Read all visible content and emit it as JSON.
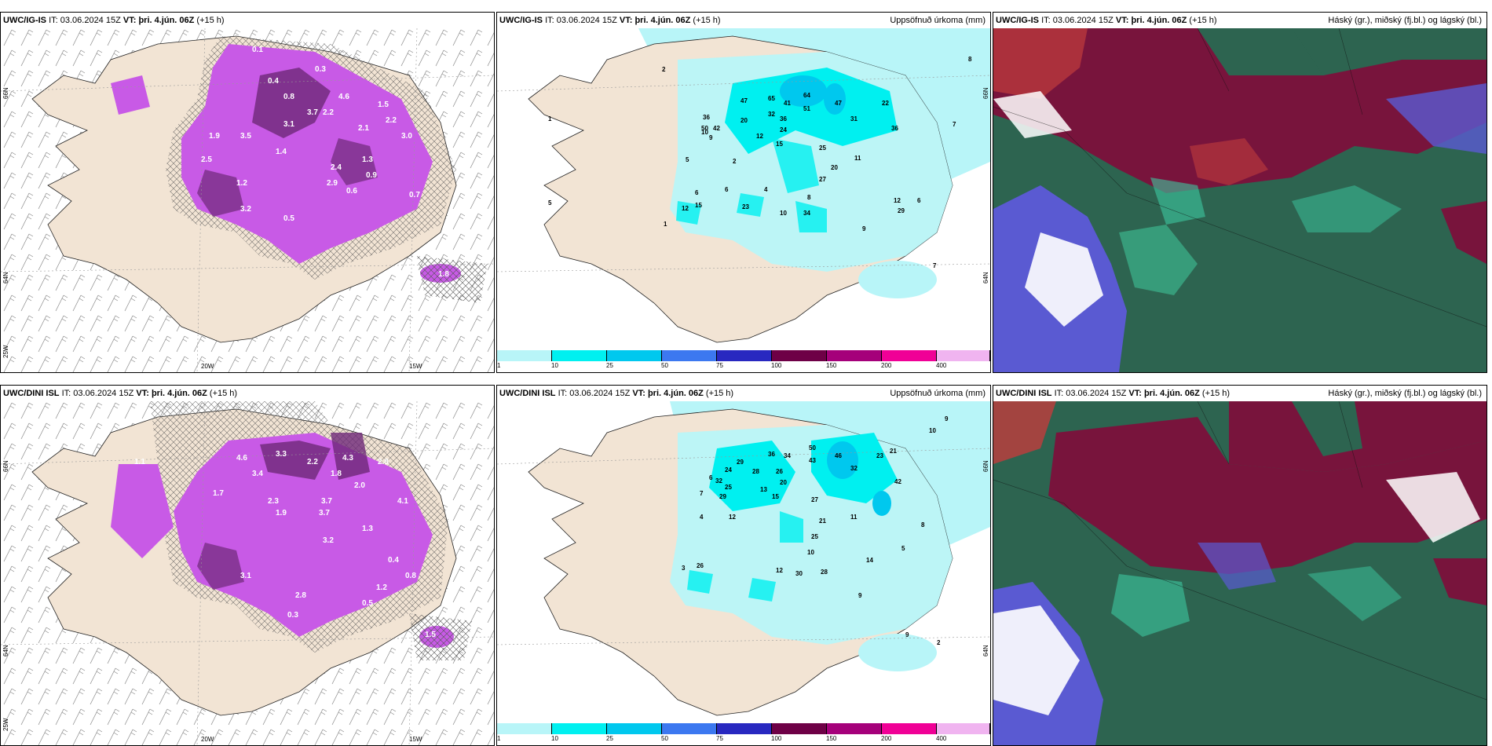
{
  "panels": [
    {
      "id": "top-left",
      "model": "UWC/IG-IS",
      "it_label": "IT:",
      "it_value": "03.06.2024 15Z",
      "vt_label": "VT:",
      "vt_value": "þri. 4.jún. 06Z",
      "lead": "(+15 h)",
      "right_title": "",
      "lon_labels": [
        "20W",
        "15W"
      ],
      "lat_labels": [
        "66N",
        "64N",
        "25W"
      ],
      "values": [
        "0.1",
        "0.3",
        "0.4",
        "0.8",
        "1.5",
        "2.2",
        "1.3",
        "0.6",
        "3.7",
        "2.2",
        "4.6",
        "2.1",
        "3.5",
        "3.1",
        "1.9",
        "2.4",
        "2.9",
        "1.4",
        "1.2",
        "3.2",
        "3.0",
        "0.9",
        "1.8",
        "0.5",
        "0.7",
        "2.5"
      ]
    },
    {
      "id": "top-middle",
      "model": "UWC/IG-IS",
      "it_label": "IT:",
      "it_value": "03.06.2024 15Z",
      "vt_label": "VT:",
      "vt_value": "þri. 4.jún. 06Z",
      "lead": "(+15 h)",
      "right_title": "Uppsöfnuð úrkoma (mm)",
      "lat_labels": [
        "66N",
        "64N"
      ],
      "values": [
        "2",
        "8",
        "47",
        "65",
        "41",
        "64",
        "51",
        "47",
        "22",
        "36",
        "20",
        "32",
        "36",
        "31",
        "50",
        "42",
        "12",
        "24",
        "15",
        "36",
        "25",
        "10",
        "11",
        "20",
        "27",
        "9",
        "6",
        "7",
        "4",
        "8",
        "5",
        "23",
        "12",
        "15",
        "10",
        "34",
        "29",
        "12",
        "6",
        "9",
        "1",
        "5",
        "7",
        "2",
        "6",
        "1"
      ],
      "colorbar": {
        "ticks": [
          "1",
          "10",
          "25",
          "50",
          "75",
          "100",
          "150",
          "200",
          "400"
        ],
        "colors": [
          "#b8f5f8",
          "#00f0f0",
          "#00c8ee",
          "#3c78f0",
          "#2828c0",
          "#6e0046",
          "#a5007a",
          "#f00096",
          "#f0b4f0"
        ]
      }
    },
    {
      "id": "top-right",
      "model": "UWC/IG-IS",
      "it_label": "IT:",
      "it_value": "03.06.2024 15Z",
      "vt_label": "VT:",
      "vt_value": "þri. 4.jún. 06Z",
      "lead": "(+15 h)",
      "right_title": "Háský (gr.), miðský (fj.bl.) og lágský (bl.)"
    },
    {
      "id": "bottom-left",
      "model": "UWC/DINI ISL",
      "it_label": "IT:",
      "it_value": "03.06.2024 15Z",
      "vt_label": "VT:",
      "vt_value": "þri. 4.jún. 06Z",
      "lead": "(+15 h)",
      "right_title": "",
      "lon_labels": [
        "20W",
        "15W"
      ],
      "lat_labels": [
        "66N",
        "64N",
        "25W"
      ],
      "values": [
        "1.1",
        "4.6",
        "3.3",
        "2.2",
        "4.3",
        "2.8",
        "1.8",
        "3.4",
        "2.0",
        "1.7",
        "3.7",
        "2.3",
        "1.9",
        "4.1",
        "1.3",
        "3.2",
        "0.4",
        "3.1",
        "2.8",
        "1.2",
        "0.5",
        "0.3",
        "1.5",
        "3.7",
        "0.8"
      ]
    },
    {
      "id": "bottom-middle",
      "model": "UWC/DINI ISL",
      "it_label": "IT:",
      "it_value": "03.06.2024 15Z",
      "vt_label": "VT:",
      "vt_value": "þri. 4.jún. 06Z",
      "lead": "(+15 h)",
      "right_title": "Uppsöfnuð úrkoma (mm)",
      "lat_labels": [
        "66N",
        "64N"
      ],
      "values": [
        "9",
        "10",
        "36",
        "34",
        "50",
        "43",
        "46",
        "32",
        "23",
        "21",
        "29",
        "28",
        "24",
        "32",
        "26",
        "20",
        "25",
        "29",
        "13",
        "15",
        "42",
        "27",
        "21",
        "11",
        "12",
        "25",
        "10",
        "8",
        "14",
        "30",
        "28",
        "26",
        "12",
        "9",
        "5",
        "6",
        "7",
        "4",
        "2",
        "3",
        "9"
      ],
      "colorbar": {
        "ticks": [
          "1",
          "10",
          "25",
          "50",
          "75",
          "100",
          "150",
          "200",
          "400"
        ],
        "colors": [
          "#b8f5f8",
          "#00f0f0",
          "#00c8ee",
          "#3c78f0",
          "#2828c0",
          "#6e0046",
          "#a5007a",
          "#f00096",
          "#f0b4f0"
        ]
      }
    },
    {
      "id": "bottom-right",
      "model": "UWC/DINI ISL",
      "it_label": "IT:",
      "it_value": "03.06.2024 15Z",
      "vt_label": "VT:",
      "vt_value": "þri. 4.jún. 06Z",
      "lead": "(+15 h)",
      "right_title": "Háský (gr.), miðský (fj.bl.) og lágský (bl.)"
    }
  ],
  "colors": {
    "land": "#f2e4d4",
    "sea": "#ffffff",
    "precip_light": "#b8f5f8",
    "precip_mid": "#00f0f0",
    "snow_purple": "#c85ae6",
    "snow_dark": "#6e2878",
    "cloud_high": "#2d6450",
    "cloud_mid": "#78143c",
    "cloud_low": "#5a5ad2"
  }
}
